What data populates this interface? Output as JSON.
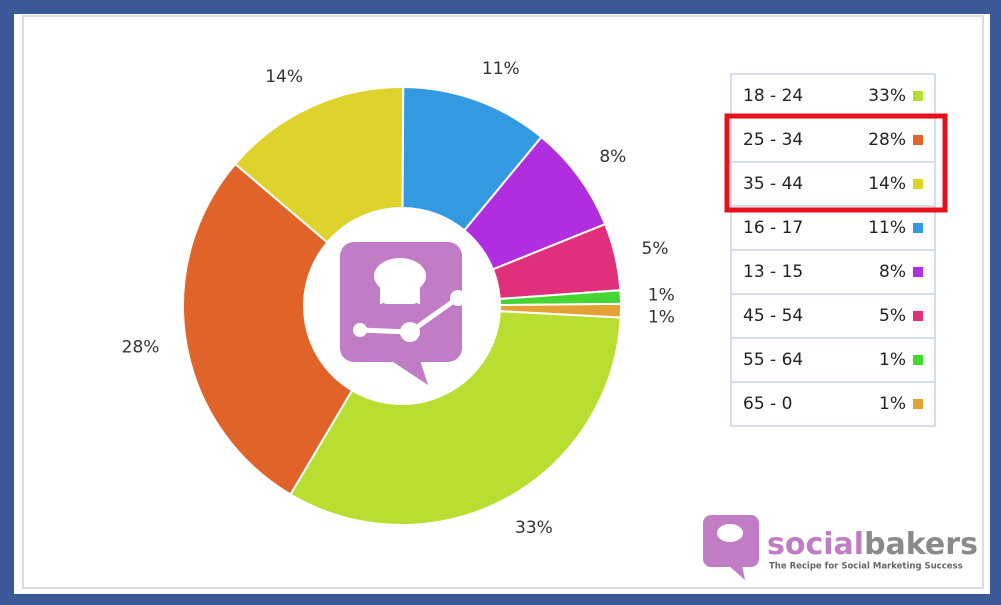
{
  "chart_data": {
    "type": "donut",
    "categories": [
      "18 - 24",
      "25 - 34",
      "35 - 44",
      "16 - 17",
      "13 - 15",
      "45 - 54",
      "55 - 64",
      "65 - 0"
    ],
    "values": [
      33,
      28,
      14,
      11,
      8,
      5,
      1,
      1
    ],
    "value_labels": [
      "33%",
      "28%",
      "14%",
      "11%",
      "8%",
      "5%",
      "1%",
      "1%"
    ],
    "colors": [
      "#b9de32",
      "#e0642a",
      "#ded22c",
      "#3399e0",
      "#b12de0",
      "#e0307c",
      "#46d634",
      "#e3a233"
    ],
    "legend": "right",
    "highlighted_rows": [
      1,
      2
    ]
  },
  "branding": {
    "name_part1": "social",
    "name_part2": "bakers",
    "tagline": "The Recipe for Social Marketing Success"
  }
}
